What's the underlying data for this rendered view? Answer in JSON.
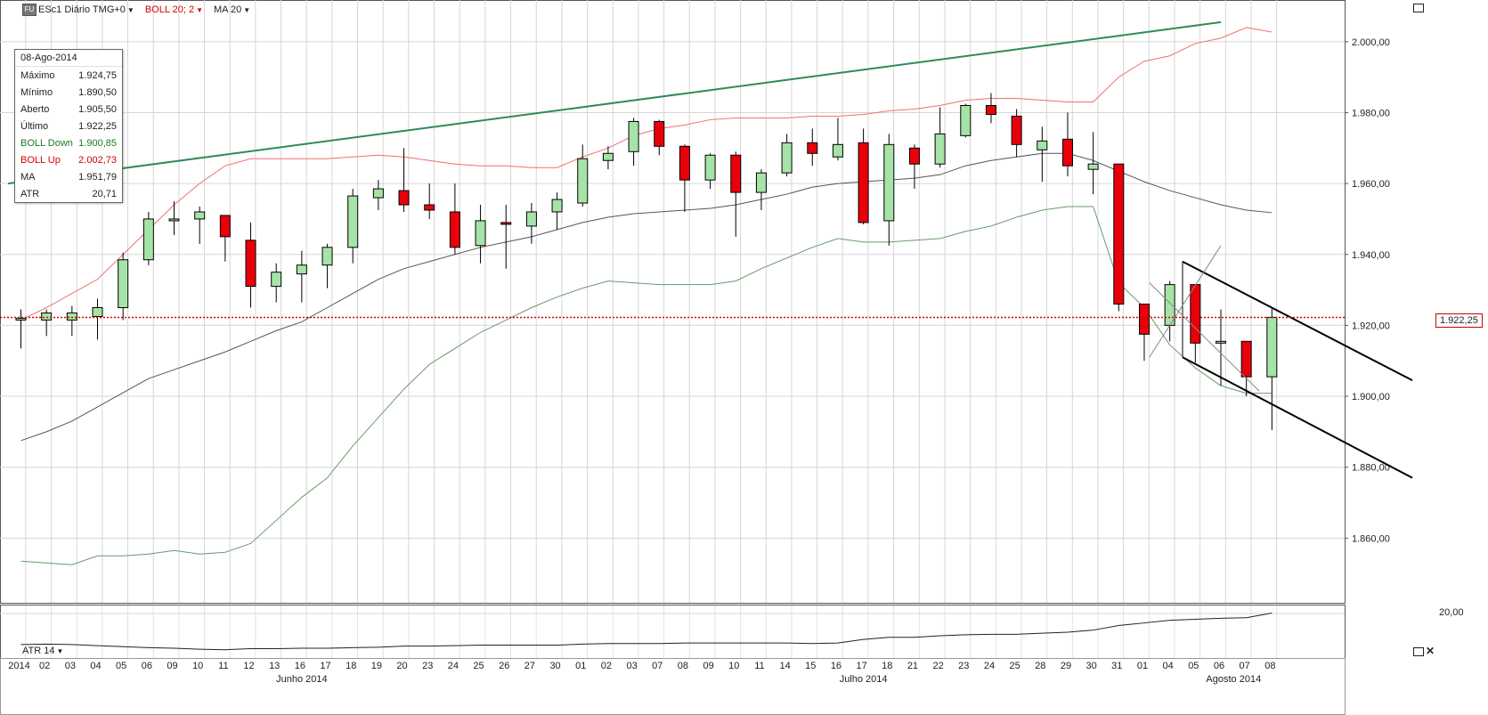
{
  "toolbar": {
    "logo": "FU",
    "symbol": "ESc1 Diário TMG+0",
    "boll": "BOLL 20; 2",
    "ma": "MA 20"
  },
  "info": {
    "date": "08-Ago-2014",
    "rows": [
      {
        "label": "Máximo",
        "value": "1.924,75",
        "color": "#222222"
      },
      {
        "label": "Mínimo",
        "value": "1.890,50",
        "color": "#222222"
      },
      {
        "label": "Aberto",
        "value": "1.905,50",
        "color": "#222222"
      },
      {
        "label": "Último",
        "value": "1.922,25",
        "color": "#222222"
      },
      {
        "label": "BOLL Down",
        "value": "1.900,85",
        "color": "#1f7a1f"
      },
      {
        "label": "BOLL Up",
        "value": "2.002,73",
        "color": "#d40000"
      },
      {
        "label": "MA",
        "value": "1.951,79",
        "color": "#222222"
      },
      {
        "label": "ATR",
        "value": "20,71",
        "color": "#222222"
      }
    ]
  },
  "atr_title": "ATR 14",
  "last_price_label": "1.922,25",
  "atr_value_label": "20,00",
  "colors": {
    "up": "#a6e3a6",
    "down": "#e8000a",
    "boll_up": "#f07070",
    "boll_down": "#6a9a6a",
    "ma": "#555555",
    "trend": "#2e8b57",
    "last": "#d40000"
  },
  "chart_data": {
    "type": "candlestick",
    "ylim": [
      1840,
      2010
    ],
    "yticks": [
      "2.000,00",
      "1.980,00",
      "1.960,00",
      "1.940,00",
      "1.920,00",
      "1.900,00",
      "1.880,00",
      "1.860,00"
    ],
    "yticks_values": [
      2000,
      1980,
      1960,
      1940,
      1920,
      1900,
      1880,
      1860
    ],
    "dates": [
      "2014",
      "02",
      "03",
      "04",
      "05",
      "06",
      "09",
      "10",
      "11",
      "12",
      "13",
      "16",
      "17",
      "18",
      "19",
      "20",
      "23",
      "24",
      "25",
      "26",
      "27",
      "30",
      "01",
      "02",
      "03",
      "07",
      "08",
      "09",
      "10",
      "11",
      "14",
      "15",
      "16",
      "17",
      "18",
      "21",
      "22",
      "23",
      "24",
      "25",
      "28",
      "29",
      "30",
      "31",
      "01",
      "04",
      "05",
      "06",
      "07",
      "08"
    ],
    "month_labels": [
      {
        "label": "Junho 2014",
        "index": 11
      },
      {
        "label": "Julho 2014",
        "index": 33
      },
      {
        "label": "Agosto 2014",
        "index": 47.5
      }
    ],
    "ohlc": [
      [
        1921.5,
        1924.5,
        1913.5,
        1922.0
      ],
      [
        1921.5,
        1924.5,
        1917.0,
        1923.5
      ],
      [
        1921.5,
        1925.5,
        1917.0,
        1923.5
      ],
      [
        1922.5,
        1927.5,
        1916.0,
        1925.0
      ],
      [
        1925.0,
        1940.5,
        1921.5,
        1938.5
      ],
      [
        1938.5,
        1952.0,
        1937.0,
        1950.0
      ],
      [
        1949.5,
        1955.0,
        1945.5,
        1950.0
      ],
      [
        1950.0,
        1953.5,
        1943.0,
        1952.0
      ],
      [
        1951.0,
        1951.0,
        1938.0,
        1945.0
      ],
      [
        1944.0,
        1949.0,
        1925.0,
        1931.0
      ],
      [
        1931.0,
        1937.5,
        1926.5,
        1935.0
      ],
      [
        1934.5,
        1941.0,
        1926.5,
        1937.0
      ],
      [
        1937.0,
        1943.0,
        1930.5,
        1942.0
      ],
      [
        1942.0,
        1958.5,
        1937.5,
        1956.5
      ],
      [
        1956.0,
        1961.0,
        1952.5,
        1958.5
      ],
      [
        1958.0,
        1970.0,
        1952.0,
        1954.0
      ],
      [
        1954.0,
        1960.0,
        1950.0,
        1952.5
      ],
      [
        1952.0,
        1960.0,
        1940.0,
        1942.0
      ],
      [
        1942.5,
        1954.0,
        1937.5,
        1949.5
      ],
      [
        1949.0,
        1954.0,
        1936.0,
        1948.5
      ],
      [
        1948.0,
        1954.5,
        1943.0,
        1952.0
      ],
      [
        1952.0,
        1957.5,
        1947.0,
        1955.5
      ],
      [
        1954.5,
        1971.0,
        1953.5,
        1967.0
      ],
      [
        1966.5,
        1970.5,
        1964.0,
        1968.5
      ],
      [
        1969.0,
        1978.5,
        1965.0,
        1977.5
      ],
      [
        1977.5,
        1978.0,
        1968.0,
        1970.5
      ],
      [
        1970.5,
        1971.0,
        1952.0,
        1961.0
      ],
      [
        1961.0,
        1968.5,
        1958.5,
        1968.0
      ],
      [
        1968.0,
        1969.0,
        1945.0,
        1957.5
      ],
      [
        1957.5,
        1964.0,
        1952.5,
        1963.0
      ],
      [
        1963.0,
        1974.0,
        1962.0,
        1971.5
      ],
      [
        1971.5,
        1975.5,
        1965.0,
        1968.5
      ],
      [
        1967.5,
        1978.5,
        1966.5,
        1971.0
      ],
      [
        1971.5,
        1975.5,
        1948.5,
        1949.0
      ],
      [
        1949.5,
        1974.0,
        1942.5,
        1971.0
      ],
      [
        1970.0,
        1971.0,
        1958.5,
        1965.5
      ],
      [
        1965.5,
        1981.5,
        1964.5,
        1974.0
      ],
      [
        1973.5,
        1982.5,
        1973.0,
        1982.0
      ],
      [
        1982.0,
        1985.5,
        1977.0,
        1979.5
      ],
      [
        1979.0,
        1981.0,
        1967.5,
        1971.0
      ],
      [
        1969.5,
        1976.0,
        1960.5,
        1972.0
      ],
      [
        1972.5,
        1980.0,
        1962.0,
        1965.0
      ],
      [
        1964.0,
        1974.5,
        1957.0,
        1965.5
      ],
      [
        1965.5,
        1965.5,
        1924.0,
        1926.0
      ],
      [
        1926.0,
        1926.0,
        1910.0,
        1917.5
      ],
      [
        1920.0,
        1932.5,
        1915.5,
        1931.5
      ],
      [
        1931.5,
        1931.5,
        1909.5,
        1915.0
      ],
      [
        1915.0,
        1924.5,
        1903.0,
        1915.5
      ],
      [
        1915.5,
        1915.5,
        1900.0,
        1905.5
      ],
      [
        1905.5,
        1924.75,
        1890.5,
        1922.25
      ]
    ],
    "ma": [
      1887.5,
      1890.0,
      1893.0,
      1897.0,
      1901.0,
      1905.0,
      1907.5,
      1910.0,
      1912.5,
      1915.5,
      1918.5,
      1921.0,
      1925.0,
      1929.0,
      1933.0,
      1936.0,
      1938.0,
      1940.0,
      1942.0,
      1943.5,
      1945.0,
      1947.0,
      1949.0,
      1950.5,
      1951.5,
      1952.0,
      1952.5,
      1953.0,
      1954.0,
      1955.5,
      1957.0,
      1959.0,
      1960.0,
      1960.5,
      1961.0,
      1961.5,
      1962.5,
      1965.0,
      1966.5,
      1967.5,
      1968.5,
      1968.5,
      1966.5,
      1963.5,
      1960.5,
      1958.0,
      1956.0,
      1954.0,
      1952.5,
      1951.79
    ],
    "boll_up": [
      1921.5,
      1925.0,
      1929.0,
      1933.0,
      1940.0,
      1947.0,
      1954.0,
      1960.0,
      1965.0,
      1967.0,
      1967.0,
      1967.0,
      1967.0,
      1967.5,
      1968.0,
      1967.5,
      1966.5,
      1965.5,
      1965.0,
      1965.0,
      1964.5,
      1964.5,
      1967.5,
      1970.0,
      1973.5,
      1975.5,
      1976.5,
      1978.0,
      1978.5,
      1978.5,
      1978.5,
      1979.0,
      1979.0,
      1979.5,
      1980.5,
      1981.0,
      1982.0,
      1983.5,
      1984.0,
      1984.0,
      1983.5,
      1983.0,
      1983.0,
      1990.0,
      1994.5,
      1996.0,
      1999.5,
      2001.0,
      2004.0,
      2002.73
    ],
    "boll_down": [
      1853.5,
      1853.0,
      1852.5,
      1855.0,
      1855.0,
      1855.5,
      1856.5,
      1855.5,
      1856.0,
      1858.5,
      1865.0,
      1871.5,
      1877.0,
      1886.0,
      1894.0,
      1902.0,
      1909.0,
      1913.5,
      1918.0,
      1921.5,
      1925.0,
      1928.0,
      1930.5,
      1932.5,
      1932.0,
      1931.5,
      1931.5,
      1931.5,
      1932.5,
      1936.0,
      1939.0,
      1942.0,
      1944.5,
      1943.5,
      1943.5,
      1944.0,
      1944.5,
      1946.5,
      1948.0,
      1950.5,
      1952.5,
      1953.5,
      1953.5,
      1932.0,
      1925.0,
      1914.5,
      1908.0,
      1903.0,
      1900.85,
      1900.85
    ],
    "atr_series": [
      14.6,
      14.7,
      14.6,
      14.4,
      14.2,
      14.0,
      13.9,
      13.7,
      13.6,
      13.8,
      13.8,
      13.9,
      13.9,
      14.0,
      14.1,
      14.3,
      14.3,
      14.4,
      14.5,
      14.5,
      14.5,
      14.5,
      14.7,
      14.8,
      14.8,
      14.8,
      14.9,
      14.9,
      14.9,
      14.9,
      14.9,
      14.8,
      14.9,
      15.6,
      16.0,
      16.0,
      16.3,
      16.5,
      16.6,
      16.6,
      16.8,
      17.0,
      17.4,
      18.3,
      18.8,
      19.3,
      19.5,
      19.7,
      19.8,
      20.71
    ],
    "atr_ylim": [
      12,
      22
    ],
    "annotations": {
      "trendline": {
        "from": [
          -0.5,
          1960.0
        ],
        "to": [
          47,
          2005.5
        ]
      },
      "channel_upper": {
        "from": [
          45.5,
          1938.0
        ],
        "to": [
          54.5,
          1904.5
        ]
      },
      "channel_lower": {
        "from": [
          45.5,
          1911.0
        ],
        "to": [
          54.5,
          1877.0
        ]
      },
      "channel_side": {
        "from": [
          45.5,
          1911.0
        ],
        "to": [
          45.5,
          1938.0
        ]
      },
      "thin_line_a": {
        "from": [
          44.2,
          1932.0
        ],
        "to": [
          48.5,
          1901.5
        ]
      },
      "thin_line_b": {
        "from": [
          44.2,
          1911.0
        ],
        "to": [
          47.0,
          1942.5
        ]
      },
      "last_price": 1922.25
    }
  }
}
